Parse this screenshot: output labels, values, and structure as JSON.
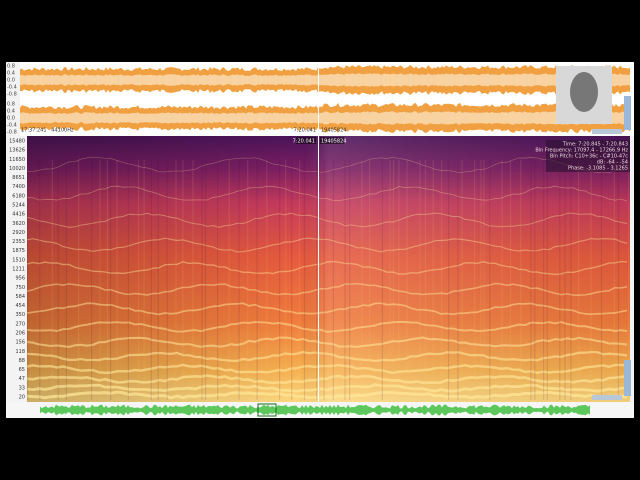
{
  "waveform": {
    "time_label": "17:37.241 · 44100Hz",
    "cursor_time": "7:20.041",
    "cursor_sample": "19405824",
    "amplitude_labels": [
      "0.8",
      "0.4",
      "0.0",
      "-0.4",
      "-0.8",
      "0.8",
      "0.4",
      "0.0",
      "-0.4",
      "-0.8"
    ]
  },
  "spectrogram": {
    "cursor_time": "7:20.041",
    "cursor_sample": "19405824",
    "frequency_labels": [
      "15480",
      "13626",
      "11650",
      "10020",
      "8651",
      "7400",
      "6180",
      "5244",
      "4416",
      "3620",
      "2920",
      "2353",
      "1875",
      "1510",
      "1211",
      "956",
      "750",
      "584",
      "454",
      "350",
      "270",
      "206",
      "156",
      "118",
      "88",
      "65",
      "47",
      "33",
      "20"
    ],
    "info": [
      "Time: 7:20.845 - 7:20.843",
      "Bin Frequency: 17097.4 - 17266.9 Hz",
      "Bin Pitch: C10+36c - C#10-47c",
      "dB: -64 - -54",
      "Phase: -3.1085 - 3.1265"
    ]
  }
}
